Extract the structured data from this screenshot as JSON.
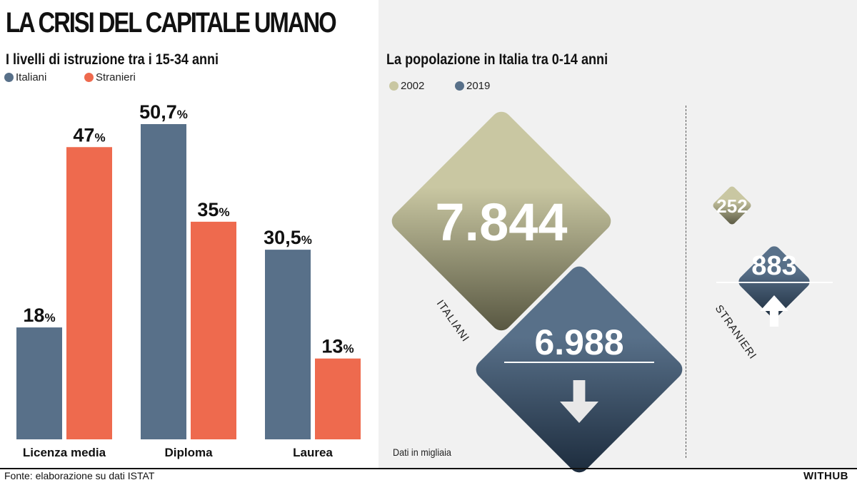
{
  "title": "LA CRISI DEL CAPITALE UMANO",
  "left": {
    "subtitle": "I livelli di istruzione tra i 15-34 anni",
    "legend": [
      {
        "label": "Italiani",
        "color": "#587089"
      },
      {
        "label": "Stranieri",
        "color": "#ee6a4e"
      }
    ]
  },
  "right": {
    "subtitle": "La popolazione in Italia tra 0-14 anni",
    "legend": [
      {
        "label": "2002",
        "color": "#c9c7a2"
      },
      {
        "label": "2019",
        "color": "#587089"
      }
    ],
    "note": "Dati in migliaia"
  },
  "footer": {
    "source": "Fonte: elaborazione su dati ISTAT",
    "brand": "WITHUB"
  },
  "chart_data": [
    {
      "type": "bar",
      "title": "I livelli di istruzione tra i 15-34 anni",
      "categories": [
        "Licenza media",
        "Diploma",
        "Laurea"
      ],
      "series": [
        {
          "name": "Italiani",
          "values": [
            18,
            50.7,
            30.5
          ],
          "labels": [
            "18%",
            "50,7%",
            "30,5%"
          ],
          "color": "#587089"
        },
        {
          "name": "Stranieri",
          "values": [
            47,
            35,
            13
          ],
          "labels": [
            "47%",
            "35%",
            "13%"
          ],
          "color": "#ee6a4e"
        }
      ],
      "ylim": [
        0,
        52
      ]
    },
    {
      "type": "diamond",
      "title": "La popolazione in Italia tra 0-14 anni",
      "unit": "Dati in migliaia",
      "groups": [
        {
          "name": "ITALIANI",
          "trend": "down",
          "values": [
            {
              "year": "2002",
              "value": 7844,
              "label": "7.844",
              "color": "#c9c7a2"
            },
            {
              "year": "2019",
              "value": 6988,
              "label": "6.988",
              "color": "#587089"
            }
          ]
        },
        {
          "name": "STRANIERI",
          "trend": "up",
          "values": [
            {
              "year": "2002",
              "value": 252,
              "label": "252",
              "color": "#c9c7a2"
            },
            {
              "year": "2019",
              "value": 883,
              "label": "883",
              "color": "#587089"
            }
          ]
        }
      ]
    }
  ]
}
